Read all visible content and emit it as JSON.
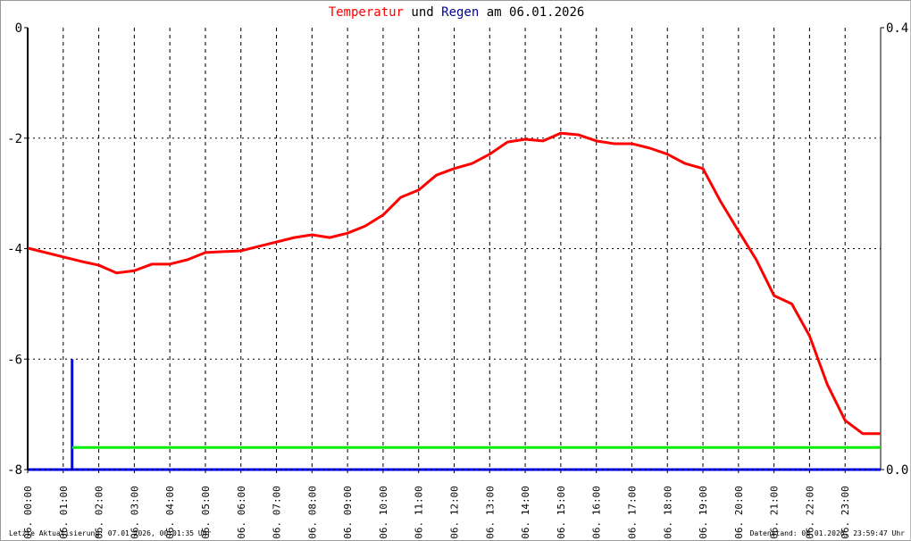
{
  "title": {
    "part1": "Temperatur",
    "part2": " und ",
    "part3": "Regen",
    "part4": " am 06.01.2026"
  },
  "footer": {
    "left": "Letzte Aktualisierung: 07.01.2026, 00:01:35 Uhr",
    "right": "Datenstand: 06.01.2026, 23:59:47 Uhr"
  },
  "colors": {
    "temperature": "#ff0000",
    "rain": "#0000ff",
    "rain_sum": "#00ee00",
    "title_temp": "#ff0000",
    "title_rain": "#000099"
  },
  "chart_data": {
    "type": "line",
    "grid": true,
    "x_tick_labels": [
      "06. 00:00",
      "06. 01:00",
      "06. 02:00",
      "06. 03:00",
      "06. 04:00",
      "06. 05:00",
      "06. 06:00",
      "06. 07:00",
      "06. 08:00",
      "06. 09:00",
      "06. 10:00",
      "06. 11:00",
      "06. 12:00",
      "06. 13:00",
      "06. 14:00",
      "06. 15:00",
      "06. 16:00",
      "06. 17:00",
      "06. 18:00",
      "06. 19:00",
      "06. 20:00",
      "06. 21:00",
      "06. 22:00",
      "06. 23:00"
    ],
    "xlim_hours": [
      0,
      24
    ],
    "y_left": {
      "ylim": [
        -8,
        0
      ],
      "ticks": [
        "0",
        "-2",
        "-4",
        "-6",
        "-8"
      ]
    },
    "y_right": {
      "ylim": [
        0.0,
        0.4
      ],
      "ticks": [
        "0.4",
        "0.0"
      ]
    },
    "series": [
      {
        "name": "Temperatur",
        "axis": "left",
        "color": "#ff0000",
        "x": [
          0,
          1,
          1.5,
          2,
          2.5,
          3,
          3.5,
          4,
          4.5,
          5,
          6,
          7,
          7.5,
          8,
          8.5,
          9,
          9.5,
          10,
          10.5,
          11,
          11.5,
          12,
          12.5,
          13,
          13.5,
          14,
          14.5,
          15,
          15.5,
          16,
          16.5,
          17,
          17.5,
          18,
          18.5,
          19,
          19.5,
          20,
          20.5,
          21,
          21.5,
          22,
          22.5,
          23,
          23.5,
          23.98
        ],
        "y": [
          -3.99,
          -4.15,
          -4.23,
          -4.3,
          -4.44,
          -4.4,
          -4.28,
          -4.28,
          -4.2,
          -4.07,
          -4.04,
          -3.88,
          -3.8,
          -3.75,
          -3.8,
          -3.72,
          -3.59,
          -3.39,
          -3.07,
          -2.94,
          -2.67,
          -2.55,
          -2.46,
          -2.29,
          -2.07,
          -2.02,
          -2.05,
          -1.91,
          -1.94,
          -2.05,
          -2.1,
          -2.1,
          -2.18,
          -2.29,
          -2.46,
          -2.55,
          -3.15,
          -3.68,
          -4.2,
          -4.85,
          -5.0,
          -5.58,
          -6.46,
          -7.11,
          -7.35,
          -7.35
        ]
      },
      {
        "name": "Regen",
        "axis": "right",
        "color": "#0000ff",
        "type": "bar",
        "x": [
          1.25
        ],
        "y": [
          0.1
        ]
      },
      {
        "axis": "right",
        "color": "#00ee00",
        "type": "step",
        "x": [
          1.25,
          24
        ],
        "y": [
          0.02,
          0.02
        ]
      }
    ]
  }
}
